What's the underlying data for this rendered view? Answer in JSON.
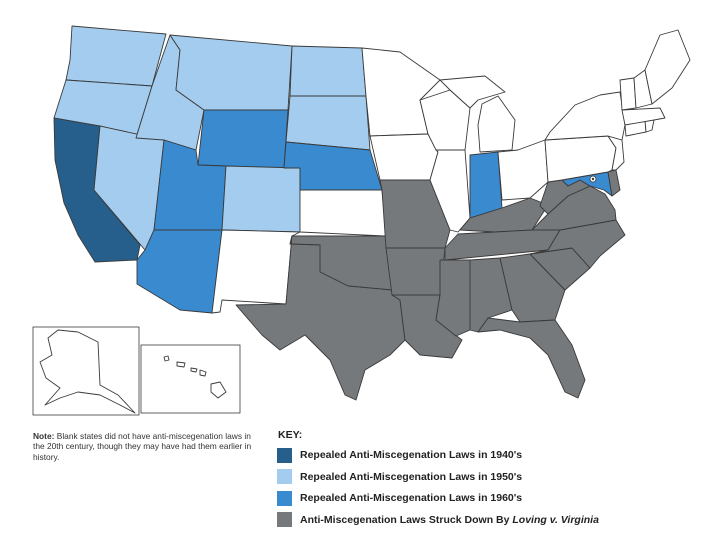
{
  "map": {
    "colors": {
      "blank": "#ffffff",
      "r1940": "#265f8c",
      "r1950": "#a3ccee",
      "r1960": "#3a8ad0",
      "loving": "#76797c",
      "outline": "#3a3a3a"
    },
    "states": {
      "WA": "r1950",
      "OR": "r1950",
      "CA": "r1940",
      "NV": "r1950",
      "ID": "r1950",
      "MT": "r1950",
      "WY": "r1960",
      "UT": "r1960",
      "AZ": "r1960",
      "CO": "r1950",
      "NM": "blank",
      "ND": "r1950",
      "SD": "r1950",
      "NE": "r1960",
      "KS": "blank",
      "OK": "loving",
      "TX": "loving",
      "MN": "blank",
      "IA": "blank",
      "MO": "loving",
      "AR": "loving",
      "LA": "loving",
      "WI": "blank",
      "IL": "blank",
      "MI": "blank",
      "IN": "r1960",
      "OH": "blank",
      "KY": "loving",
      "TN": "loving",
      "MS": "loving",
      "AL": "loving",
      "GA": "loving",
      "FL": "loving",
      "SC": "loving",
      "NC": "loving",
      "VA": "loving",
      "WV": "loving",
      "MD": "r1960",
      "DE": "loving",
      "PA": "blank",
      "NJ": "blank",
      "NY": "blank",
      "CT": "blank",
      "RI": "blank",
      "MA": "blank",
      "VT": "blank",
      "NH": "blank",
      "ME": "blank",
      "AK": "blank",
      "HI": "blank"
    }
  },
  "note": {
    "label": "Note:",
    "text": "Blank states did not have anti-miscegenation laws in the 20th century, though they may have had them earlier in history."
  },
  "key": {
    "title": "KEY:",
    "items": [
      {
        "label": "Repealed Anti-Miscegenation Laws in 1940's",
        "color": "#265f8c"
      },
      {
        "label": "Repealed Anti-Miscegenation Laws in 1950's",
        "color": "#a3ccee"
      },
      {
        "label": "Repealed Anti-Miscegenation Laws in 1960's",
        "color": "#3a8ad0"
      },
      {
        "label": "Anti-Miscegenation Laws Struck Down By",
        "label_italic": "Loving v. Virginia",
        "color": "#76797c"
      }
    ]
  }
}
